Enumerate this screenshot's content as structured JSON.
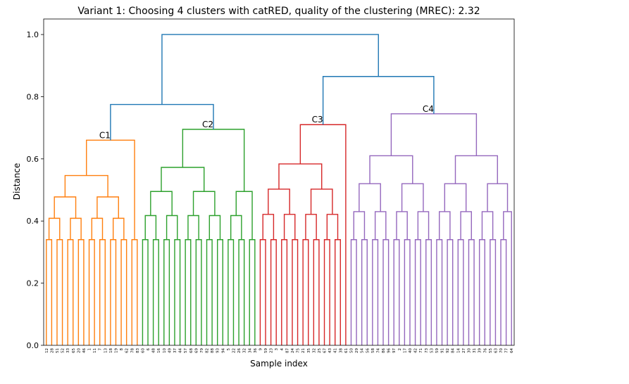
{
  "chart_data": {
    "type": "dendrogram",
    "title": "Variant 1: Choosing 4 clusters with catRED, quality of the clustering (MREC): 2.32",
    "xlabel": "Sample index",
    "ylabel": "Distance",
    "ylim": [
      0,
      1.05
    ],
    "y_ticks": [
      "0.0",
      "0.2",
      "0.4",
      "0.6",
      "0.8",
      "1.0"
    ],
    "y_tick_values": [
      0,
      0.2,
      0.4,
      0.6,
      0.8,
      1.0
    ],
    "colors": {
      "C1": "#ff7f0e",
      "C2": "#2ca02c",
      "C3": "#d62728",
      "C4": "#9467bd",
      "top": "#1f77b4"
    },
    "leaves": [
      "12",
      "28",
      "51",
      "52",
      "33",
      "65",
      "20",
      "46",
      "1",
      "11",
      "7",
      "13",
      "18",
      "19",
      "8",
      "62",
      "78",
      "83",
      "60",
      "6",
      "48",
      "16",
      "10",
      "49",
      "37",
      "44",
      "57",
      "68",
      "69",
      "79",
      "82",
      "88",
      "93",
      "94",
      "5",
      "22",
      "26",
      "32",
      "34",
      "36",
      "9",
      "59",
      "23",
      "3",
      "4",
      "87",
      "24",
      "75",
      "21",
      "35",
      "32",
      "25",
      "67",
      "43",
      "41",
      "38",
      "61",
      "50",
      "29",
      "54",
      "56",
      "58",
      "74",
      "86",
      "96",
      "97",
      "2",
      "17",
      "40",
      "42",
      "71",
      "73",
      "53",
      "59",
      "91",
      "92",
      "84",
      "14",
      "27",
      "30",
      "31",
      "39",
      "76",
      "55",
      "63",
      "70",
      "77",
      "64"
    ],
    "clusters": [
      {
        "label": "C1",
        "color_key": "C1",
        "range": [
          0,
          18
        ],
        "height": 0.66
      },
      {
        "label": "C2",
        "color_key": "C2",
        "range": [
          18,
          40
        ],
        "height": 0.695
      },
      {
        "label": "C3",
        "color_key": "C3",
        "range": [
          40,
          57
        ],
        "height": 0.71
      },
      {
        "label": "C4",
        "color_key": "C4",
        "range": [
          57,
          88
        ],
        "height": 0.745
      }
    ],
    "top_links": [
      {
        "left": "C1",
        "right": "C2",
        "height": 0.775
      },
      {
        "left": "C3",
        "right": "C4",
        "height": 0.865
      },
      {
        "left": "C1C2",
        "right": "C3C4",
        "height": 1.0
      }
    ]
  }
}
